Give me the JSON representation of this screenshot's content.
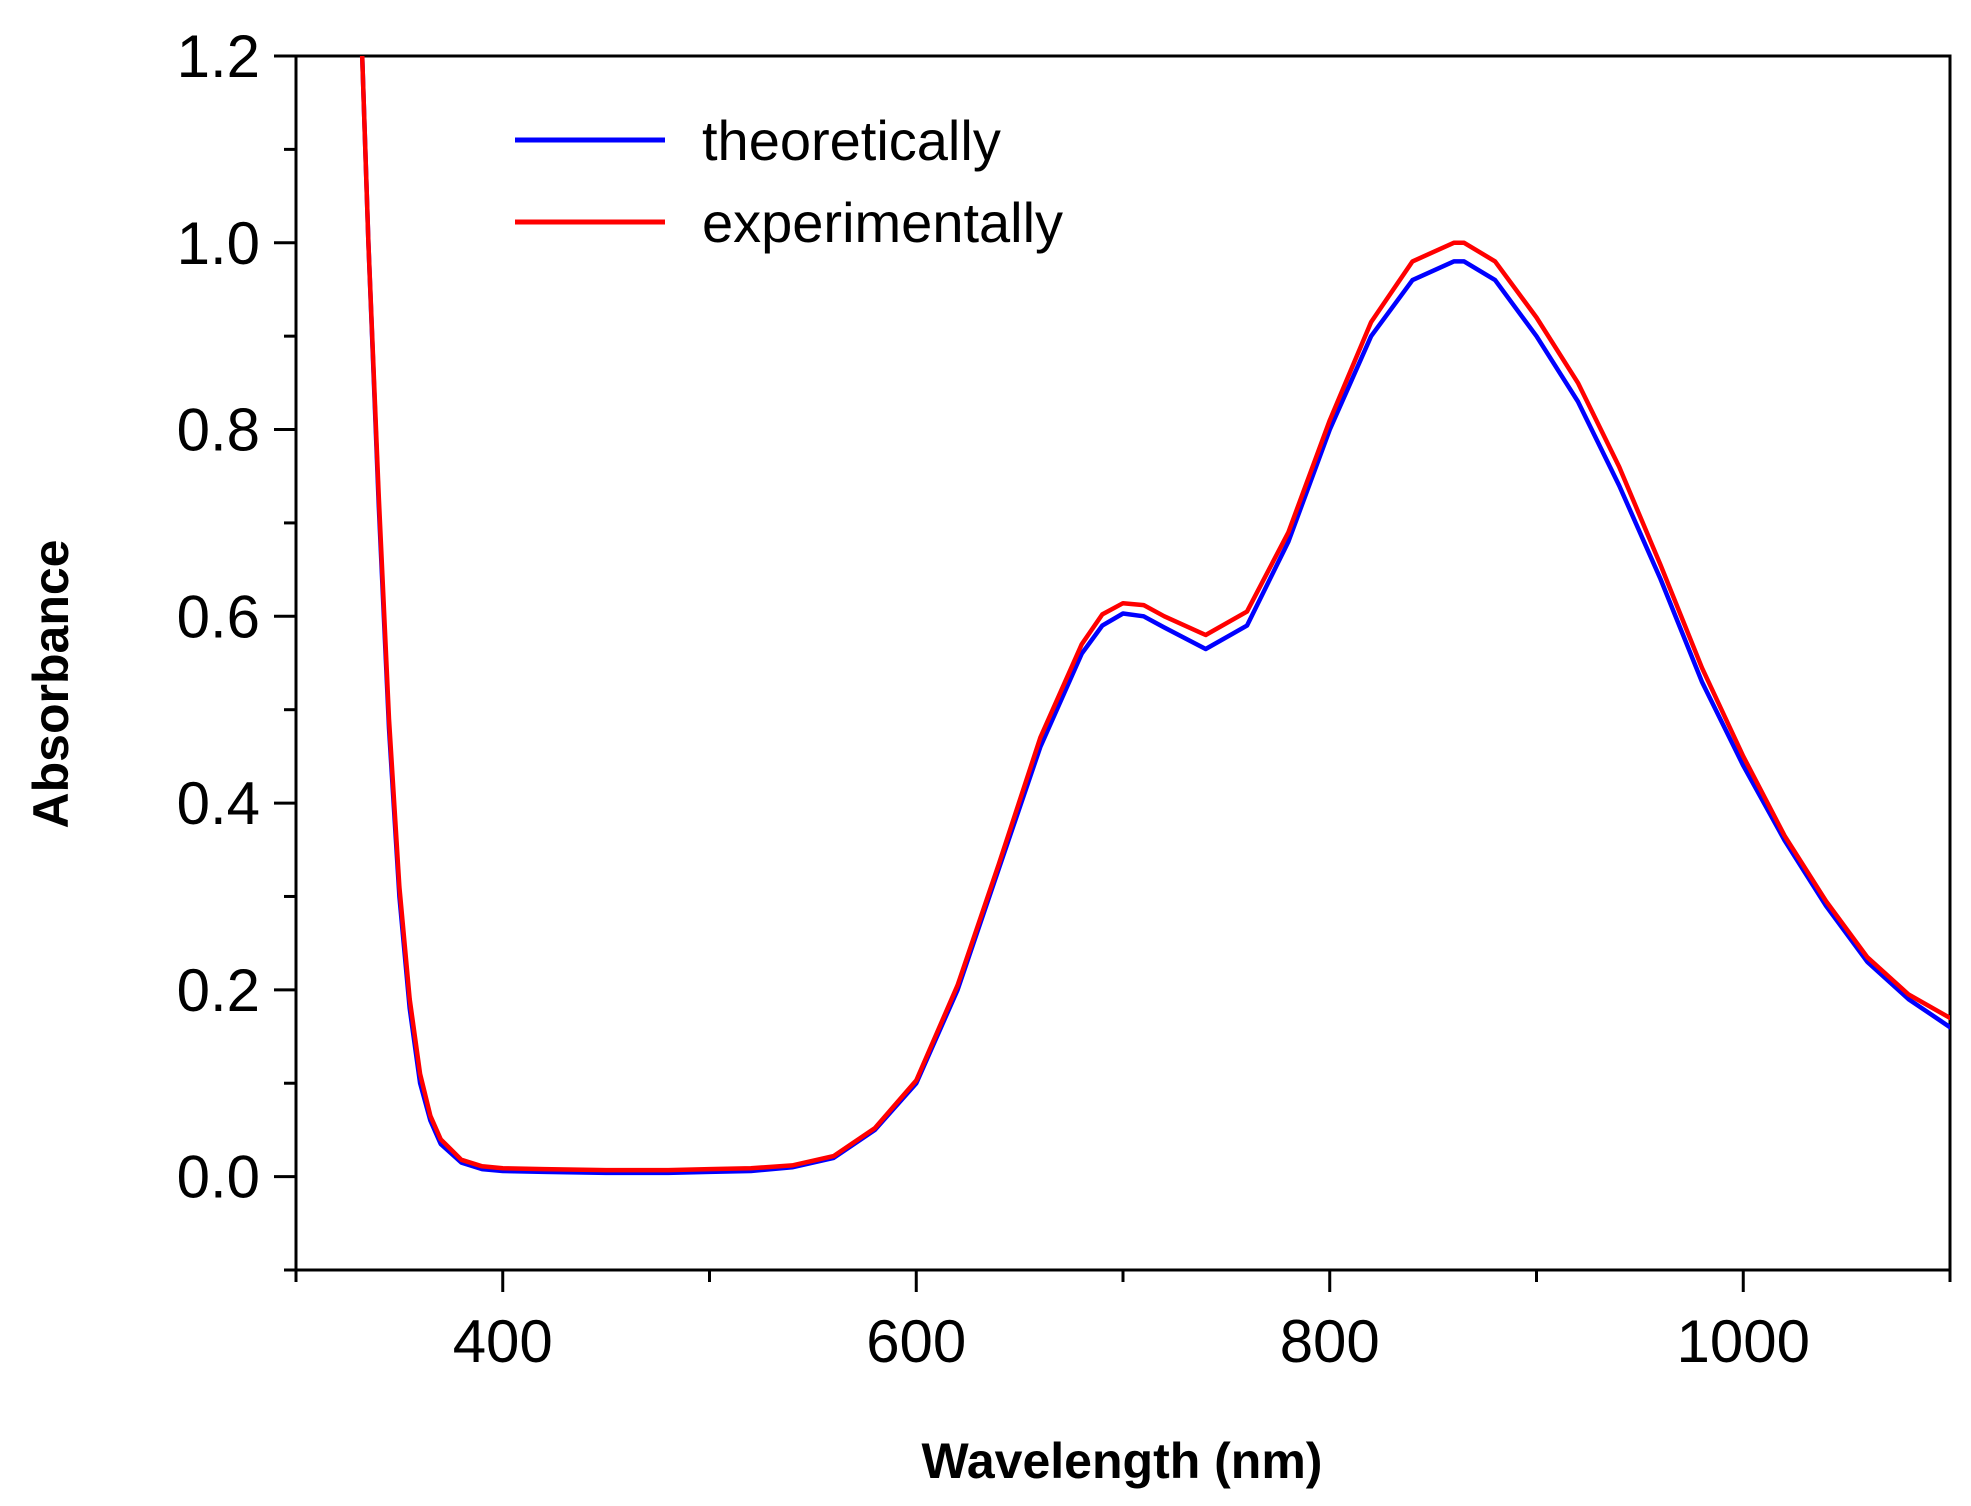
{
  "chart_data": {
    "type": "line",
    "title": "",
    "xlabel": "Wavelength (nm)",
    "ylabel": "Absorbance",
    "xlim": [
      300,
      1100
    ],
    "ylim": [
      -0.1,
      1.2
    ],
    "x_ticks": [
      400,
      600,
      800,
      1000
    ],
    "x_tick_labels": [
      "400",
      "600",
      "800",
      "1000"
    ],
    "y_ticks": [
      0.0,
      0.2,
      0.4,
      0.6,
      0.8,
      1.0,
      1.2
    ],
    "y_tick_labels": [
      "0.0",
      "0.2",
      "0.4",
      "0.6",
      "0.8",
      "1.0",
      "1.2"
    ],
    "grid": false,
    "legend_position": "top-left",
    "series": [
      {
        "name": "theoretically",
        "color": "#0000ff",
        "x": [
          332,
          335,
          340,
          345,
          350,
          355,
          360,
          365,
          370,
          380,
          390,
          400,
          420,
          450,
          480,
          500,
          520,
          540,
          560,
          580,
          600,
          620,
          640,
          660,
          680,
          690,
          700,
          710,
          720,
          740,
          760,
          780,
          800,
          820,
          840,
          860,
          865,
          880,
          900,
          920,
          940,
          960,
          980,
          1000,
          1020,
          1040,
          1060,
          1080,
          1100
        ],
        "y": [
          1.2,
          1.0,
          0.72,
          0.48,
          0.3,
          0.18,
          0.1,
          0.06,
          0.035,
          0.015,
          0.008,
          0.006,
          0.005,
          0.004,
          0.004,
          0.005,
          0.006,
          0.01,
          0.02,
          0.05,
          0.1,
          0.2,
          0.33,
          0.46,
          0.56,
          0.59,
          0.603,
          0.6,
          0.588,
          0.565,
          0.59,
          0.68,
          0.8,
          0.9,
          0.96,
          0.98,
          0.98,
          0.96,
          0.9,
          0.83,
          0.74,
          0.64,
          0.53,
          0.44,
          0.36,
          0.29,
          0.23,
          0.19,
          0.16
        ]
      },
      {
        "name": "experimentally",
        "color": "#ff0000",
        "x": [
          332,
          335,
          340,
          345,
          350,
          355,
          360,
          365,
          370,
          380,
          390,
          400,
          420,
          450,
          480,
          500,
          520,
          540,
          560,
          580,
          600,
          620,
          640,
          660,
          680,
          690,
          700,
          710,
          720,
          740,
          760,
          780,
          800,
          820,
          840,
          860,
          865,
          880,
          900,
          920,
          940,
          960,
          980,
          1000,
          1020,
          1040,
          1060,
          1080,
          1100
        ],
        "y": [
          1.2,
          1.0,
          0.73,
          0.49,
          0.31,
          0.19,
          0.11,
          0.065,
          0.04,
          0.018,
          0.011,
          0.009,
          0.008,
          0.007,
          0.007,
          0.008,
          0.009,
          0.012,
          0.022,
          0.052,
          0.103,
          0.205,
          0.335,
          0.47,
          0.57,
          0.602,
          0.614,
          0.612,
          0.6,
          0.58,
          0.605,
          0.69,
          0.81,
          0.915,
          0.98,
          1.0,
          1.0,
          0.98,
          0.92,
          0.85,
          0.76,
          0.655,
          0.545,
          0.45,
          0.365,
          0.295,
          0.235,
          0.195,
          0.17
        ]
      }
    ]
  }
}
